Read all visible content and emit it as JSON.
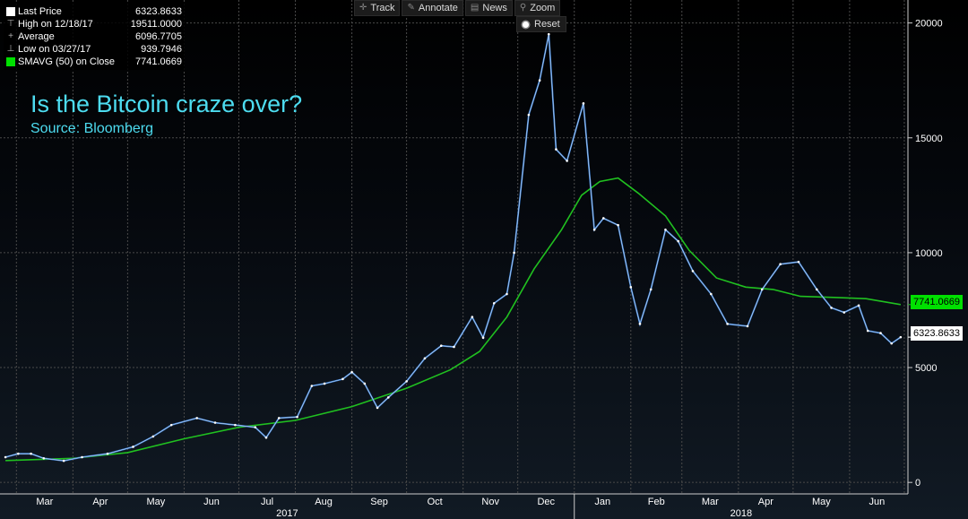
{
  "toolbar": {
    "track": "Track",
    "annotate": "Annotate",
    "news": "News",
    "zoom": "Zoom",
    "reset": "Reset"
  },
  "legend": {
    "rows": [
      {
        "label": "Last Price",
        "value": "6323.8633"
      },
      {
        "label": "High on 12/18/17",
        "value": "19511.0000"
      },
      {
        "label": "Average",
        "value": "6096.7705"
      },
      {
        "label": "Low on 03/27/17",
        "value": "939.7946"
      },
      {
        "label": "SMAVG (50) on Close",
        "value": "7741.0669"
      }
    ]
  },
  "annotation": {
    "title": "Is the Bitcoin craze over?",
    "source": "Source: Bloomberg"
  },
  "tags": {
    "sma": "7741.0669",
    "last": "6323.8633"
  },
  "colors": {
    "price": "#3a7fd5",
    "sma": "#20c020",
    "title": "#4ddcf0",
    "grid": "#4a4a4a"
  },
  "chart_data": {
    "type": "line",
    "title": "Is the Bitcoin craze over?",
    "subtitle": "Source: Bloomberg",
    "ylim": [
      -500,
      21000
    ],
    "yticks": [
      0,
      5000,
      10000,
      15000,
      20000
    ],
    "y_axis_side": "right",
    "grid": true,
    "months": [
      "Mar",
      "Apr",
      "May",
      "Jun",
      "Jul",
      "Aug",
      "Sep",
      "Oct",
      "Nov",
      "Dec",
      "Jan",
      "Feb",
      "Mar",
      "Apr",
      "May",
      "Jun"
    ],
    "years": [
      "2017",
      "2018"
    ],
    "series": [
      {
        "name": "Last Price",
        "x": [
          "2017-02-23",
          "2017-03-02",
          "2017-03-09",
          "2017-03-16",
          "2017-03-27",
          "2017-04-06",
          "2017-04-20",
          "2017-05-04",
          "2017-05-15",
          "2017-05-25",
          "2017-06-08",
          "2017-06-18",
          "2017-06-29",
          "2017-07-10",
          "2017-07-16",
          "2017-07-23",
          "2017-08-02",
          "2017-08-10",
          "2017-08-17",
          "2017-08-27",
          "2017-09-01",
          "2017-09-08",
          "2017-09-15",
          "2017-09-21",
          "2017-10-01",
          "2017-10-11",
          "2017-10-20",
          "2017-10-27",
          "2017-11-06",
          "2017-11-12",
          "2017-11-18",
          "2017-11-25",
          "2017-11-29",
          "2017-12-07",
          "2017-12-13",
          "2017-12-18",
          "2017-12-22",
          "2017-12-28",
          "2018-01-06",
          "2018-01-12",
          "2018-01-17",
          "2018-01-25",
          "2018-02-01",
          "2018-02-06",
          "2018-02-12",
          "2018-02-20",
          "2018-02-27",
          "2018-03-07",
          "2018-03-17",
          "2018-03-26",
          "2018-04-06",
          "2018-04-14",
          "2018-04-24",
          "2018-05-04",
          "2018-05-14",
          "2018-05-22",
          "2018-05-29",
          "2018-06-06",
          "2018-06-11",
          "2018-06-18",
          "2018-06-24",
          "2018-06-29"
        ],
        "y": [
          1100,
          1250,
          1250,
          1050,
          940,
          1100,
          1250,
          1550,
          2000,
          2500,
          2800,
          2600,
          2500,
          2400,
          1950,
          2800,
          2850,
          4200,
          4300,
          4500,
          4800,
          4300,
          3250,
          3700,
          4400,
          5400,
          5950,
          5900,
          7200,
          6300,
          7800,
          8200,
          10000,
          16000,
          17500,
          19511,
          14500,
          14000,
          16500,
          11000,
          11500,
          11200,
          8500,
          6900,
          8400,
          11000,
          10500,
          9200,
          8200,
          6900,
          6800,
          8400,
          9500,
          9600,
          8400,
          7600,
          7400,
          7700,
          6600,
          6500,
          6050,
          6323.8633
        ]
      },
      {
        "name": "SMAVG (50) on Close",
        "x": [
          "2017-02-23",
          "2017-04-01",
          "2017-05-01",
          "2017-06-01",
          "2017-07-01",
          "2017-08-01",
          "2017-09-01",
          "2017-10-01",
          "2017-10-25",
          "2017-11-10",
          "2017-11-25",
          "2017-12-10",
          "2017-12-25",
          "2018-01-05",
          "2018-01-15",
          "2018-01-25",
          "2018-02-05",
          "2018-02-20",
          "2018-03-05",
          "2018-03-20",
          "2018-04-05",
          "2018-04-20",
          "2018-05-05",
          "2018-05-25",
          "2018-06-10",
          "2018-06-29"
        ],
        "y": [
          950,
          1050,
          1300,
          1900,
          2400,
          2700,
          3300,
          4100,
          4900,
          5700,
          7200,
          9300,
          11000,
          12500,
          13100,
          13250,
          12600,
          11600,
          10100,
          8900,
          8500,
          8400,
          8100,
          8050,
          8000,
          7741.0669
        ]
      }
    ]
  }
}
